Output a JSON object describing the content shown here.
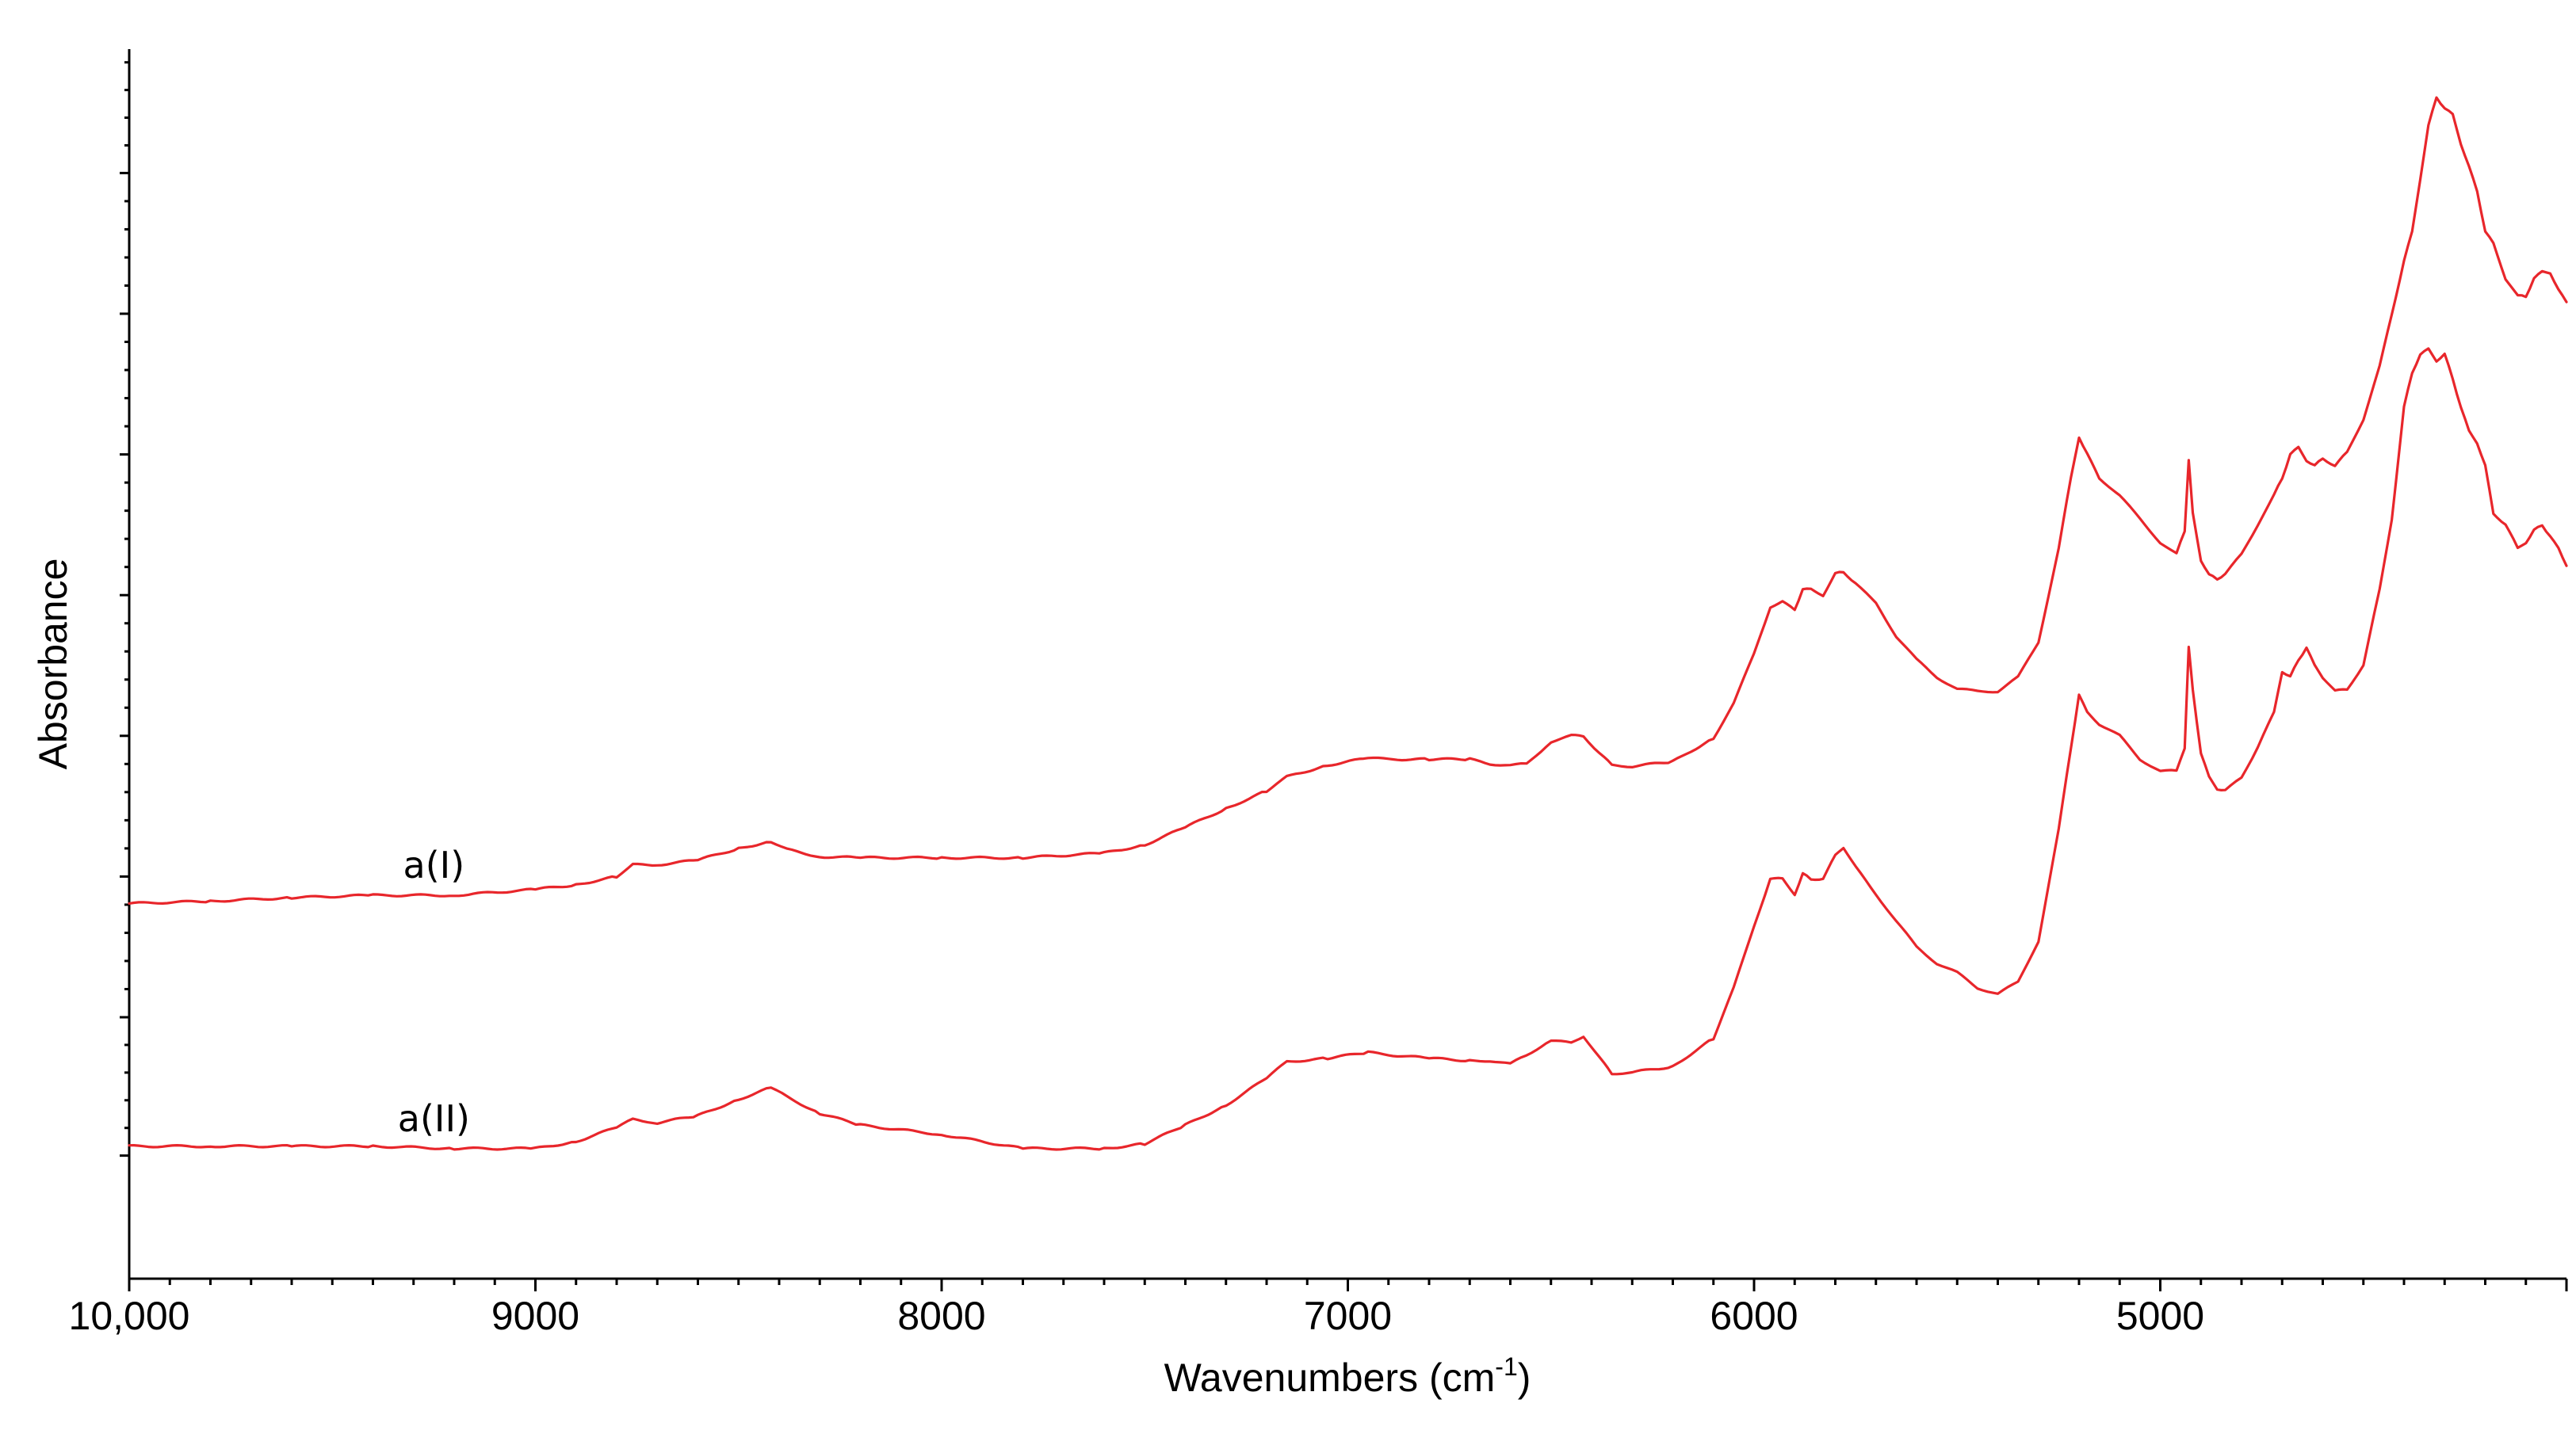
{
  "chart_data": {
    "type": "line",
    "title": "",
    "xlabel": "Wavenumbers (cm",
    "xlabel_superscript": "-1",
    "xlabel_suffix": ")",
    "ylabel": "Absorbance",
    "x_reversed": true,
    "xlim": [
      10000,
      4000
    ],
    "ylim": [
      0,
      1
    ],
    "y_tick_labels_shown": false,
    "grid": false,
    "legend": "none",
    "x_major_ticks": [
      {
        "value": 10000,
        "label": "10,000"
      },
      {
        "value": 9000,
        "label": "9000"
      },
      {
        "value": 8000,
        "label": "8000"
      },
      {
        "value": 7000,
        "label": "7000"
      },
      {
        "value": 6000,
        "label": "6000"
      },
      {
        "value": 5000,
        "label": "5000"
      }
    ],
    "y_major_ticks": [
      0.082,
      0.2,
      0.32,
      0.44,
      0.56,
      0.68,
      0.8,
      0.92
    ],
    "color": "#e8262b",
    "series": [
      {
        "name": "a(I)",
        "x": [
          10000,
          9800,
          9600,
          9400,
          9200,
          9000,
          8900,
          8800,
          8760,
          8700,
          8600,
          8500,
          8420,
          8380,
          8300,
          8200,
          8000,
          7800,
          7600,
          7500,
          7400,
          7300,
          7200,
          7150,
          7050,
          6950,
          6900,
          6800,
          6700,
          6650,
          6600,
          6560,
          6500,
          6450,
          6420,
          6380,
          6350,
          6300,
          6200,
          6100,
          6050,
          6000,
          5960,
          5930,
          5900,
          5880,
          5860,
          5830,
          5800,
          5780,
          5750,
          5700,
          5650,
          5600,
          5550,
          5500,
          5450,
          5400,
          5350,
          5300,
          5250,
          5220,
          5200,
          5180,
          5150,
          5100,
          5050,
          5000,
          4960,
          4940,
          4930,
          4920,
          4900,
          4880,
          4860,
          4840,
          4800,
          4760,
          4720,
          4700,
          4680,
          4660,
          4640,
          4620,
          4600,
          4570,
          4540,
          4500,
          4460,
          4430,
          4400,
          4380,
          4360,
          4340,
          4320,
          4300,
          4280,
          4260,
          4240,
          4220,
          4200,
          4180,
          4150,
          4120,
          4100,
          4080,
          4060,
          4040,
          4020,
          4000
        ],
        "y": [
          0.297,
          0.299,
          0.302,
          0.304,
          0.304,
          0.309,
          0.313,
          0.32,
          0.33,
          0.33,
          0.334,
          0.344,
          0.35,
          0.343,
          0.337,
          0.336,
          0.336,
          0.336,
          0.34,
          0.347,
          0.362,
          0.378,
          0.393,
          0.405,
          0.415,
          0.421,
          0.42,
          0.42,
          0.42,
          0.416,
          0.415,
          0.416,
          0.435,
          0.44,
          0.44,
          0.425,
          0.415,
          0.414,
          0.418,
          0.438,
          0.468,
          0.51,
          0.55,
          0.554,
          0.548,
          0.565,
          0.565,
          0.56,
          0.578,
          0.58,
          0.57,
          0.553,
          0.525,
          0.505,
          0.49,
          0.48,
          0.478,
          0.478,
          0.49,
          0.52,
          0.6,
          0.66,
          0.695,
          0.68,
          0.66,
          0.645,
          0.625,
          0.605,
          0.595,
          0.615,
          0.675,
          0.63,
          0.59,
          0.577,
          0.574,
          0.578,
          0.595,
          0.62,
          0.645,
          0.66,
          0.68,
          0.686,
          0.675,
          0.67,
          0.677,
          0.67,
          0.682,
          0.71,
          0.755,
          0.8,
          0.845,
          0.87,
          0.915,
          0.96,
          0.985,
          0.975,
          0.97,
          0.945,
          0.925,
          0.905,
          0.87,
          0.86,
          0.83,
          0.815,
          0.815,
          0.83,
          0.836,
          0.835,
          0.82,
          0.81
        ]
      },
      {
        "name": "a(II)",
        "x": [
          10000,
          9800,
          9600,
          9400,
          9200,
          9000,
          8900,
          8800,
          8760,
          8700,
          8600,
          8500,
          8420,
          8380,
          8300,
          8200,
          8000,
          7800,
          7600,
          7500,
          7400,
          7300,
          7200,
          7150,
          7050,
          6950,
          6900,
          6800,
          6700,
          6650,
          6600,
          6560,
          6500,
          6450,
          6420,
          6380,
          6350,
          6300,
          6200,
          6100,
          6050,
          6000,
          5960,
          5930,
          5900,
          5880,
          5860,
          5830,
          5800,
          5780,
          5750,
          5700,
          5650,
          5600,
          5550,
          5500,
          5450,
          5400,
          5350,
          5300,
          5250,
          5220,
          5200,
          5180,
          5150,
          5100,
          5050,
          5000,
          4960,
          4940,
          4930,
          4920,
          4900,
          4880,
          4860,
          4840,
          4800,
          4760,
          4720,
          4700,
          4680,
          4660,
          4640,
          4620,
          4600,
          4570,
          4540,
          4500,
          4460,
          4430,
          4400,
          4380,
          4360,
          4340,
          4320,
          4300,
          4280,
          4260,
          4240,
          4220,
          4200,
          4180,
          4150,
          4120,
          4100,
          4080,
          4060,
          4040,
          4020,
          4000
        ],
        "y": [
          0.09,
          0.09,
          0.09,
          0.09,
          0.088,
          0.088,
          0.094,
          0.106,
          0.113,
          0.11,
          0.116,
          0.13,
          0.14,
          0.132,
          0.118,
          0.108,
          0.1,
          0.088,
          0.088,
          0.092,
          0.108,
          0.125,
          0.148,
          0.162,
          0.165,
          0.17,
          0.168,
          0.165,
          0.163,
          0.163,
          0.16,
          0.168,
          0.18,
          0.178,
          0.184,
          0.165,
          0.152,
          0.153,
          0.158,
          0.182,
          0.225,
          0.278,
          0.318,
          0.318,
          0.305,
          0.322,
          0.318,
          0.318,
          0.338,
          0.345,
          0.328,
          0.305,
          0.282,
          0.26,
          0.246,
          0.238,
          0.225,
          0.22,
          0.23,
          0.265,
          0.36,
          0.43,
          0.475,
          0.46,
          0.45,
          0.44,
          0.42,
          0.41,
          0.41,
          0.43,
          0.515,
          0.48,
          0.425,
          0.405,
          0.395,
          0.393,
          0.405,
          0.43,
          0.46,
          0.495,
          0.49,
          0.505,
          0.515,
          0.5,
          0.49,
          0.478,
          0.48,
          0.5,
          0.565,
          0.625,
          0.72,
          0.75,
          0.765,
          0.77,
          0.76,
          0.765,
          0.745,
          0.72,
          0.7,
          0.69,
          0.67,
          0.63,
          0.62,
          0.6,
          0.605,
          0.615,
          0.62,
          0.61,
          0.6,
          0.585
        ]
      }
    ]
  }
}
